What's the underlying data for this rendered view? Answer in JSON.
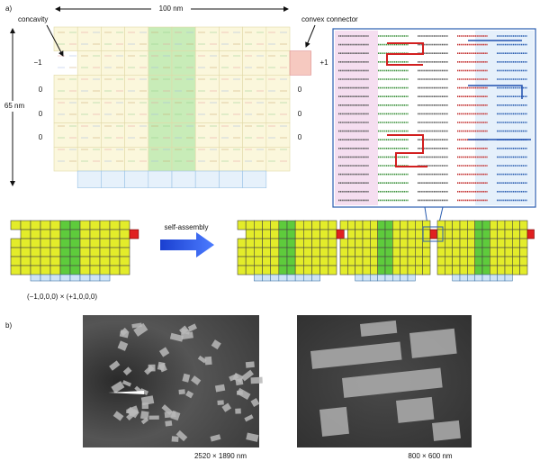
{
  "panel_a": {
    "label": "a)",
    "width_label": "100 nm",
    "height_label": "65 nm",
    "annotations": [
      "concavity",
      "convex connector"
    ],
    "left_edge_labels": [
      "−1",
      "0",
      "0",
      "0"
    ],
    "right_edge_labels": [
      "+1",
      "0",
      "0",
      "0"
    ],
    "process_label": "self-assembly",
    "formula": "(−1,0,0,0) × (+1,0,0,0)"
  },
  "panel_b": {
    "label": "b)",
    "images": [
      {
        "caption": "2520 × 1890 nm"
      },
      {
        "caption": "800 × 600 nm"
      }
    ]
  }
}
